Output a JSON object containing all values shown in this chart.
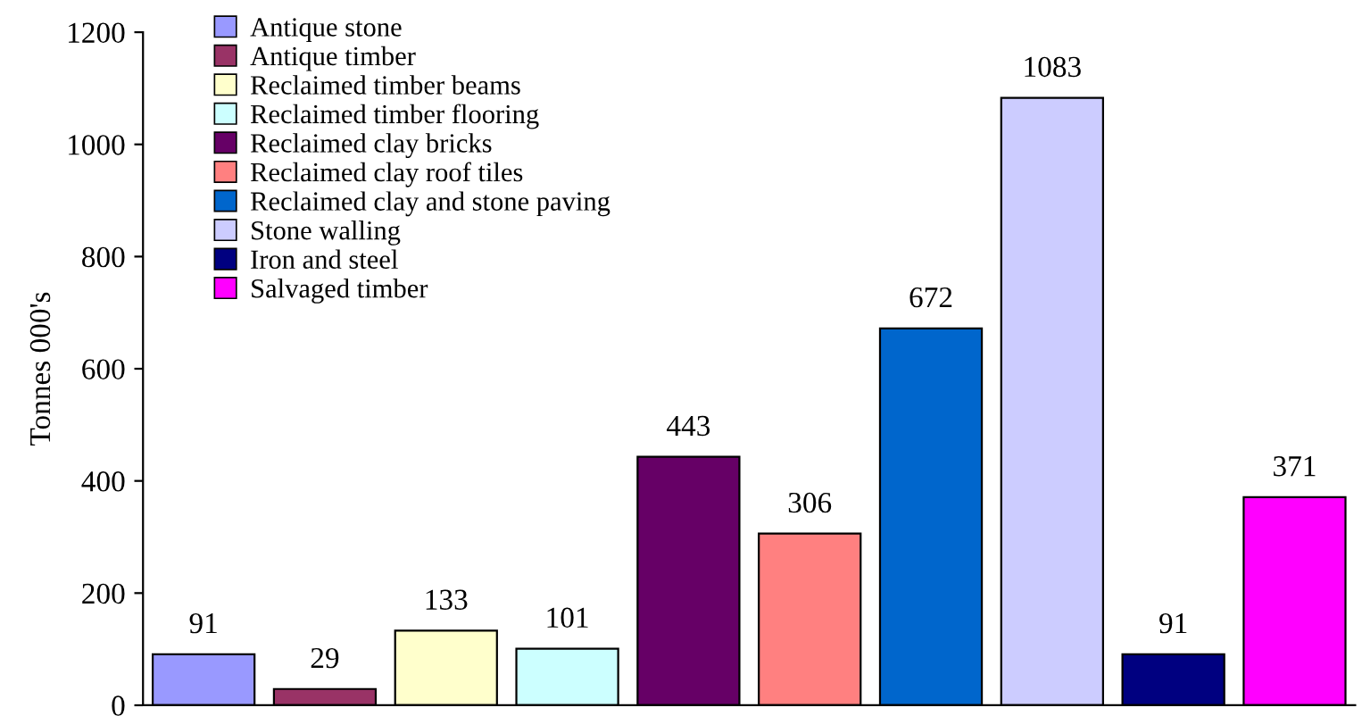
{
  "chart_data": {
    "type": "bar",
    "ylabel": "Tonnes 000's",
    "categories": [
      null,
      null,
      null,
      null,
      null,
      null,
      null,
      null,
      null,
      null
    ],
    "series": [
      {
        "name": "Antique stone",
        "color": "#9999ff",
        "values": [
          91,
          null,
          null,
          null,
          null,
          null,
          null,
          null,
          null,
          null
        ]
      },
      {
        "name": "Antique timber",
        "color": "#993366",
        "values": [
          null,
          29,
          null,
          null,
          null,
          null,
          null,
          null,
          null,
          null
        ]
      },
      {
        "name": "Reclaimed timber beams",
        "color": "#ffffcc",
        "values": [
          null,
          null,
          133,
          null,
          null,
          null,
          null,
          null,
          null,
          null
        ]
      },
      {
        "name": "Reclaimed timber flooring",
        "color": "#ccffff",
        "values": [
          null,
          null,
          null,
          101,
          null,
          null,
          null,
          null,
          null,
          null
        ]
      },
      {
        "name": "Reclaimed clay bricks",
        "color": "#660066",
        "values": [
          null,
          null,
          null,
          null,
          443,
          null,
          null,
          null,
          null,
          null
        ]
      },
      {
        "name": "Reclaimed clay roof tiles",
        "color": "#ff8080",
        "values": [
          null,
          null,
          null,
          null,
          null,
          306,
          null,
          null,
          null,
          null
        ]
      },
      {
        "name": "Reclaimed clay and stone paving",
        "color": "#0066cc",
        "values": [
          null,
          null,
          null,
          null,
          null,
          null,
          672,
          null,
          null,
          null
        ]
      },
      {
        "name": "Stone walling",
        "color": "#ccccff",
        "values": [
          null,
          null,
          null,
          null,
          null,
          null,
          null,
          1083,
          null,
          null
        ]
      },
      {
        "name": "Iron and steel",
        "color": "#000080",
        "values": [
          null,
          null,
          null,
          null,
          null,
          null,
          null,
          null,
          91,
          null
        ]
      },
      {
        "name": "Salvaged timber",
        "color": "#ff00ff",
        "values": [
          null,
          null,
          null,
          null,
          null,
          null,
          null,
          null,
          null,
          371
        ]
      }
    ],
    "ylim": [
      0,
      1200
    ],
    "yticks": [
      0,
      200,
      400,
      600,
      800,
      1000,
      1200
    ],
    "data_labels": true,
    "legend": "top left",
    "grid": false,
    "tick_labels": "y"
  }
}
